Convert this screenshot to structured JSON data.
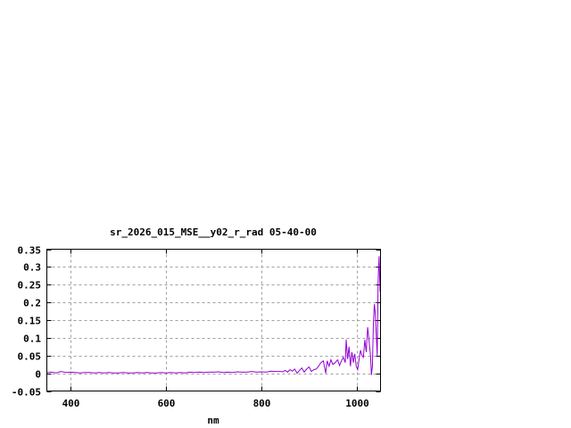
{
  "chart_data": {
    "type": "line",
    "title": "sr_2026_015_MSE__y02_r_rad 05-40-00",
    "xlabel": "nm",
    "ylabel": "",
    "xlim": [
      350,
      1050
    ],
    "ylim": [
      -0.05,
      0.35
    ],
    "xticks": [
      400,
      600,
      800,
      1000
    ],
    "xtick_labels": [
      "400",
      "600",
      "800",
      "1000"
    ],
    "yticks": [
      -0.05,
      0,
      0.05,
      0.1,
      0.15,
      0.2,
      0.25,
      0.3,
      0.35
    ],
    "ytick_labels": [
      "-0.05",
      "0",
      "0.05",
      "0.1",
      "0.15",
      "0.2",
      "0.25",
      "0.3",
      "0.35"
    ],
    "grid": true,
    "line_color": "#9400d3",
    "series": [
      {
        "x": [
          350,
          360,
          370,
          380,
          390,
          400,
          410,
          420,
          430,
          440,
          450,
          460,
          470,
          480,
          490,
          500,
          510,
          520,
          530,
          540,
          550,
          560,
          570,
          580,
          590,
          600,
          610,
          620,
          630,
          640,
          650,
          660,
          670,
          680,
          690,
          700,
          710,
          720,
          730,
          740,
          750,
          760,
          770,
          780,
          790,
          800,
          810,
          820,
          830,
          840,
          845,
          850,
          855,
          860,
          865,
          870,
          875,
          880,
          885,
          890,
          895,
          900,
          905,
          910,
          915,
          920,
          925,
          930,
          935,
          938,
          942,
          946,
          950,
          955,
          960,
          964,
          968,
          972,
          976,
          978,
          981,
          984,
          987,
          990,
          993,
          996,
          999,
          1002,
          1005,
          1008,
          1011,
          1014,
          1017,
          1020,
          1023,
          1026,
          1029,
          1031,
          1033,
          1035,
          1037,
          1039,
          1041,
          1043,
          1045,
          1047,
          1049
        ],
        "y": [
          0.002,
          0.003,
          0.001,
          0.005,
          0.002,
          0.003,
          0.002,
          0.001,
          0.002,
          0.002,
          0.001,
          0.002,
          0.001,
          0.002,
          0.001,
          0.001,
          0.002,
          0.001,
          0.001,
          0.002,
          0.001,
          0.002,
          0.001,
          0.001,
          0.002,
          0.001,
          0.002,
          0.001,
          0.002,
          0.001,
          0.003,
          0.002,
          0.003,
          0.002,
          0.003,
          0.003,
          0.004,
          0.002,
          0.003,
          0.002,
          0.004,
          0.003,
          0.003,
          0.005,
          0.003,
          0.004,
          0.003,
          0.006,
          0.005,
          0.005,
          0.004,
          0.008,
          0.003,
          0.01,
          0.006,
          0.012,
          0.0,
          0.008,
          0.015,
          0.003,
          0.012,
          0.018,
          0.005,
          0.01,
          0.012,
          0.02,
          0.03,
          0.035,
          0.0,
          0.035,
          0.02,
          0.038,
          0.025,
          0.03,
          0.038,
          0.022,
          0.035,
          0.045,
          0.03,
          0.095,
          0.04,
          0.075,
          0.02,
          0.06,
          0.03,
          0.055,
          0.02,
          0.01,
          0.04,
          0.065,
          0.05,
          0.045,
          0.095,
          0.06,
          0.13,
          0.09,
          0.05,
          -0.005,
          0.02,
          0.14,
          0.195,
          0.17,
          0.11,
          0.05,
          0.26,
          0.33,
          0.23
        ]
      }
    ]
  }
}
